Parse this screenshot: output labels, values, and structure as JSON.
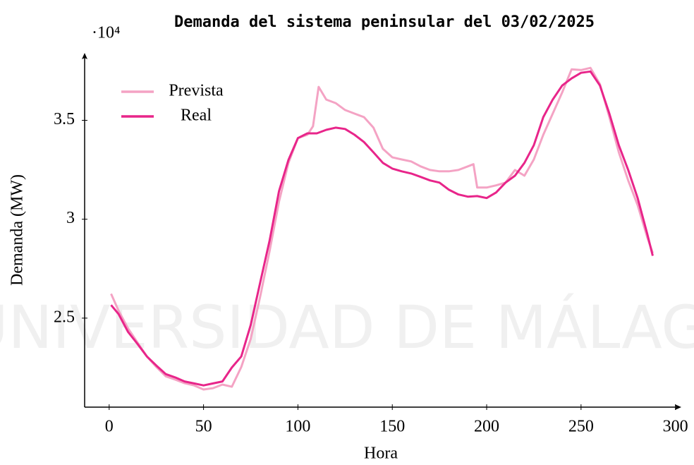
{
  "chart_data": {
    "type": "line",
    "title": "Demanda del sistema peninsular del 03/02/2025",
    "x_label": "Hora",
    "y_label": "Demanda (MW)",
    "y_scale_label": "·10⁴",
    "watermark": "UNIVERSIDAD DE MÁLAGA",
    "xlim": [
      -13,
      302
    ],
    "ylim": [
      2.05,
      3.83
    ],
    "xticks": [
      0,
      50,
      100,
      150,
      200,
      250,
      300
    ],
    "yticks": [
      2.5,
      3,
      3.5
    ],
    "legend": "upper left",
    "grid": false,
    "series": [
      {
        "name": "Prevista",
        "color": "#f4a3c4",
        "x": [
          1,
          5,
          10,
          15,
          20,
          25,
          30,
          35,
          40,
          45,
          50,
          55,
          60,
          65,
          70,
          75,
          80,
          85,
          90,
          95,
          100,
          105,
          108,
          111,
          115,
          120,
          125,
          130,
          135,
          140,
          145,
          150,
          155,
          160,
          165,
          170,
          175,
          180,
          185,
          190,
          193,
          195,
          200,
          205,
          210,
          215,
          220,
          225,
          230,
          235,
          240,
          245,
          250,
          255,
          260,
          265,
          270,
          275,
          280,
          285,
          288
        ],
        "values": [
          2.623,
          2.537,
          2.448,
          2.377,
          2.306,
          2.253,
          2.206,
          2.189,
          2.171,
          2.16,
          2.139,
          2.146,
          2.164,
          2.153,
          2.253,
          2.395,
          2.609,
          2.84,
          3.089,
          3.285,
          3.41,
          3.427,
          3.47,
          3.669,
          3.605,
          3.587,
          3.552,
          3.534,
          3.516,
          3.463,
          3.356,
          3.313,
          3.302,
          3.292,
          3.267,
          3.249,
          3.242,
          3.242,
          3.249,
          3.267,
          3.278,
          3.16,
          3.16,
          3.171,
          3.185,
          3.249,
          3.22,
          3.302,
          3.427,
          3.534,
          3.641,
          3.758,
          3.754,
          3.765,
          3.683,
          3.516,
          3.338,
          3.196,
          3.071,
          2.911,
          2.829
        ]
      },
      {
        "name": "Real",
        "color": "#e8258a",
        "x": [
          1,
          5,
          10,
          15,
          20,
          25,
          30,
          35,
          40,
          45,
          50,
          55,
          60,
          65,
          70,
          75,
          80,
          85,
          90,
          95,
          100,
          105,
          110,
          115,
          120,
          125,
          130,
          135,
          140,
          145,
          150,
          155,
          160,
          165,
          170,
          175,
          180,
          185,
          190,
          195,
          200,
          205,
          210,
          215,
          220,
          225,
          230,
          235,
          240,
          245,
          250,
          255,
          260,
          265,
          270,
          275,
          280,
          285,
          288
        ],
        "values": [
          2.566,
          2.52,
          2.43,
          2.37,
          2.306,
          2.26,
          2.217,
          2.2,
          2.18,
          2.17,
          2.16,
          2.17,
          2.18,
          2.25,
          2.306,
          2.466,
          2.68,
          2.893,
          3.142,
          3.3,
          3.41,
          3.434,
          3.434,
          3.452,
          3.463,
          3.456,
          3.427,
          3.39,
          3.338,
          3.285,
          3.256,
          3.242,
          3.231,
          3.214,
          3.196,
          3.185,
          3.149,
          3.125,
          3.114,
          3.117,
          3.107,
          3.135,
          3.185,
          3.22,
          3.285,
          3.374,
          3.516,
          3.605,
          3.676,
          3.712,
          3.74,
          3.747,
          3.676,
          3.534,
          3.374,
          3.249,
          3.107,
          2.929,
          2.815
        ]
      }
    ]
  }
}
